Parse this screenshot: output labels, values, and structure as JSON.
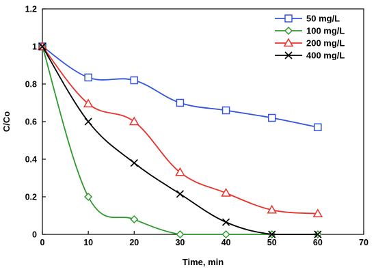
{
  "chart_data": {
    "type": "line",
    "title": "",
    "xlabel": "Time, min",
    "ylabel": "C/Co",
    "xlim": [
      0,
      70
    ],
    "ylim": [
      0,
      1.2
    ],
    "xticks": [
      "0",
      "10",
      "20",
      "30",
      "40",
      "50",
      "60",
      "70"
    ],
    "yticks": [
      "0",
      "0.2",
      "0.4",
      "0.6",
      "0.8",
      "1",
      "1.2"
    ],
    "grid": false,
    "legend_position": "top-right",
    "x": [
      0,
      10,
      20,
      30,
      40,
      50,
      60
    ],
    "series": [
      {
        "name": "50 mg/L",
        "color": "#3355dd",
        "marker": "square",
        "values": [
          1.0,
          0.835,
          0.82,
          0.7,
          0.66,
          0.62,
          0.57
        ]
      },
      {
        "name": "100 mg/L",
        "color": "#2e9a2e",
        "marker": "diamond",
        "values": [
          1.0,
          0.2,
          0.08,
          0.0,
          0.0,
          0.0,
          0.0
        ]
      },
      {
        "name": "200 mg/L",
        "color": "#e8322a",
        "marker": "triangle",
        "values": [
          1.0,
          0.695,
          0.6,
          0.33,
          0.22,
          0.13,
          0.11
        ]
      },
      {
        "name": "400 mg/L",
        "color": "#000000",
        "marker": "cross",
        "values": [
          1.0,
          0.6,
          0.38,
          0.215,
          0.065,
          0.0,
          0.0
        ]
      }
    ]
  }
}
